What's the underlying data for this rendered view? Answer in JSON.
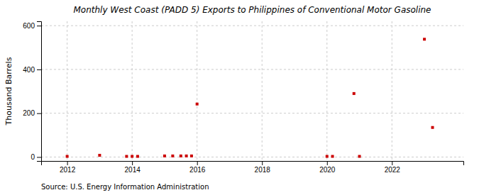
{
  "chart_data": {
    "type": "scatter",
    "title": "Monthly West Coast (PADD 5) Exports to Philippines of Conventional Motor Gasoline",
    "ylabel": "Thousand Barrels",
    "annotations": [
      "Source: U.S. Energy Information Administration"
    ],
    "x": [
      2012.0,
      2013.0,
      2013.83,
      2014.0,
      2014.17,
      2015.0,
      2015.25,
      2015.5,
      2015.67,
      2015.83,
      2016.0,
      2020.0,
      2020.17,
      2020.83,
      2021.0,
      2023.0,
      2023.25
    ],
    "values": [
      3,
      8,
      3,
      3,
      3,
      5,
      5,
      5,
      5,
      5,
      242,
      3,
      3,
      290,
      3,
      538,
      135
    ],
    "color": "#cc0000",
    "marker": "square",
    "xlim": [
      2011.2,
      2024.2
    ],
    "ylim": [
      -18,
      620
    ],
    "xticks": [
      2012,
      2014,
      2016,
      2018,
      2020,
      2022
    ],
    "yticks": [
      0,
      200,
      400,
      600
    ],
    "grid": true
  }
}
